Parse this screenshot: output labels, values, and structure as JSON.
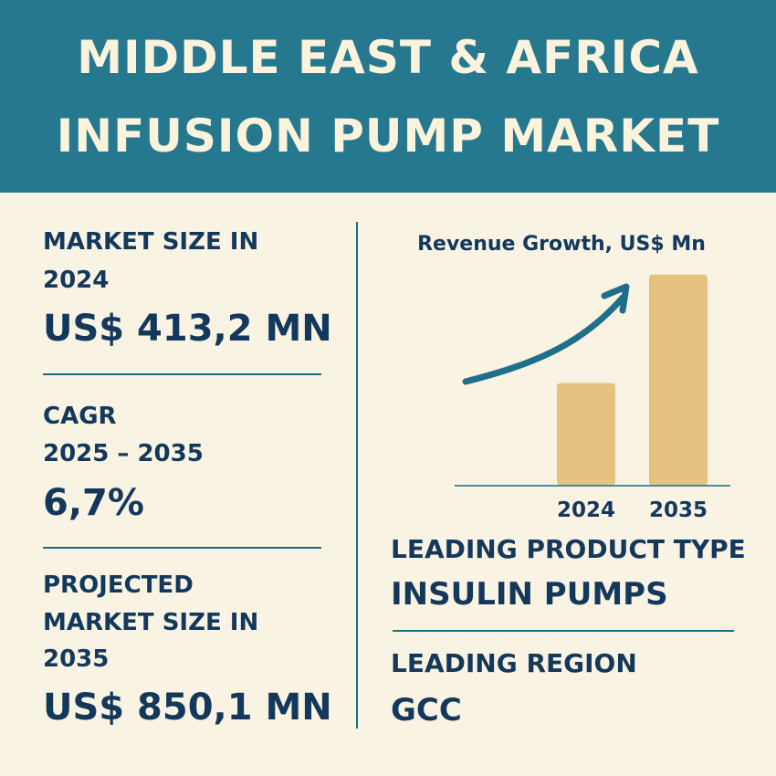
{
  "header": {
    "title_line1": "MIDDLE EAST & AFRICA",
    "title_line2": "INFUSION PUMP MARKET"
  },
  "left": {
    "market_size_label_line1": "MARKET SIZE IN",
    "market_size_label_line2": "2024",
    "market_size_value": "US$ 413,2 MN",
    "cagr_label_line1": "CAGR",
    "cagr_label_line2": "2025 – 2035",
    "cagr_value": "6,7%",
    "projected_label_line1": "PROJECTED",
    "projected_label_line2": "MARKET SIZE IN",
    "projected_label_line3": "2035",
    "projected_value": "US$ 850,1 MN"
  },
  "right": {
    "product_label": "LEADING PRODUCT TYPE",
    "product_value": "INSULIN PUMPS",
    "region_label": "LEADING REGION",
    "region_value": "GCC"
  },
  "colors": {
    "banner": "#26788f",
    "background": "#f8f3e3",
    "text": "#14385c",
    "bar": "#e5c27f",
    "arrow": "#1f6f8b"
  },
  "chart_data": {
    "type": "bar",
    "title": "Revenue Growth, US$ Mn",
    "categories": [
      "2024",
      "2035"
    ],
    "values": [
      413.2,
      850.1
    ],
    "ylim": [
      0,
      1000
    ],
    "grid": false,
    "trend_arrow": true
  }
}
